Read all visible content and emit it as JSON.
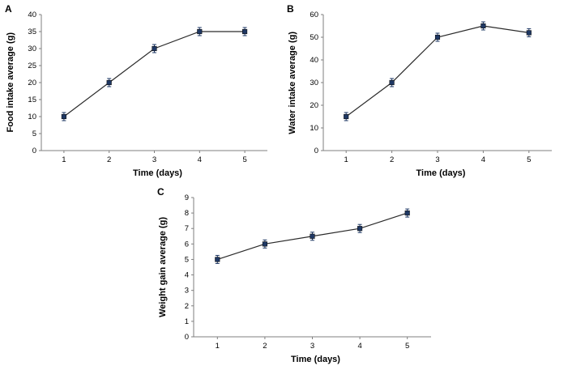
{
  "figure": {
    "background": "#ffffff",
    "text_color": "#000000",
    "axis_color": "#7f7f7f"
  },
  "chart_data": [
    {
      "type": "line",
      "panel": "A",
      "title": "",
      "x": [
        1,
        2,
        3,
        4,
        5
      ],
      "values": [
        10,
        20,
        30,
        35,
        35
      ],
      "xlabel": "Time (days)",
      "ylabel": "Food intake average (g)",
      "xlim": [
        0.5,
        5.5
      ],
      "ylim": [
        0,
        40
      ],
      "ytick_step": 5,
      "xticks": [
        1,
        2,
        3,
        4,
        5
      ],
      "grid": false,
      "legend": "none",
      "marker": "square-with-error-bar",
      "marker_color": "#1f3864",
      "line_color": "#2a2a2a"
    },
    {
      "type": "line",
      "panel": "B",
      "title": "",
      "x": [
        1,
        2,
        3,
        4,
        5
      ],
      "values": [
        15,
        30,
        50,
        55,
        52
      ],
      "xlabel": "Time (days)",
      "ylabel": "Water intake average (g)",
      "xlim": [
        0.5,
        5.5
      ],
      "ylim": [
        0,
        60
      ],
      "ytick_step": 10,
      "xticks": [
        1,
        2,
        3,
        4,
        5
      ],
      "grid": false,
      "legend": "none",
      "marker": "square-with-error-bar",
      "marker_color": "#1f3864",
      "line_color": "#2a2a2a"
    },
    {
      "type": "line",
      "panel": "C",
      "title": "",
      "x": [
        1,
        2,
        3,
        4,
        5
      ],
      "values": [
        5,
        6,
        6.5,
        7,
        8
      ],
      "xlabel": "Time (days)",
      "ylabel": "Weight gain average (g)",
      "xlim": [
        0.5,
        5.5
      ],
      "ylim": [
        0,
        9
      ],
      "ytick_step": 1,
      "xticks": [
        1,
        2,
        3,
        4,
        5
      ],
      "grid": false,
      "legend": "none",
      "marker": "square-with-error-bar",
      "marker_color": "#1f3864",
      "line_color": "#2a2a2a"
    }
  ]
}
